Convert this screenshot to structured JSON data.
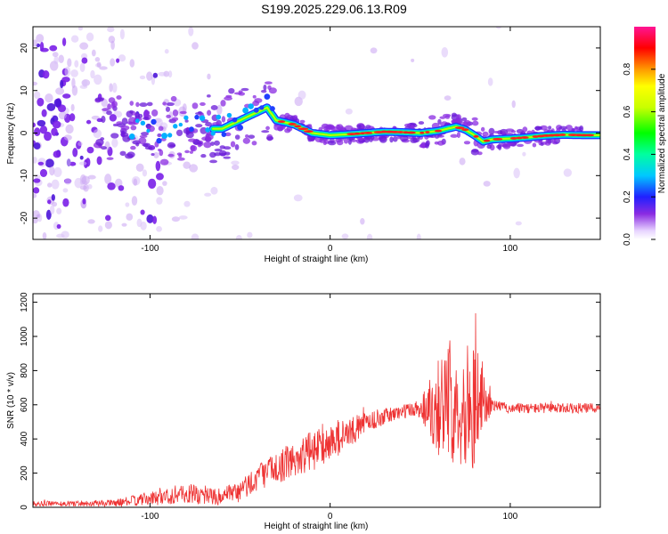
{
  "title": "S199.2025.229.06.13.R09",
  "chart_data": [
    {
      "type": "heatmap",
      "xlabel": "Height of straight line (km)",
      "ylabel": "Frequency (Hz)",
      "xlim": [
        -165,
        150
      ],
      "ylim": [
        -25,
        25
      ],
      "x_ticks": [
        -100,
        0,
        100
      ],
      "y_ticks": [
        -20,
        -10,
        0,
        10,
        20
      ],
      "colorbar": {
        "label": "Normalized spectral amplitude",
        "range": [
          0,
          1
        ],
        "ticks": [
          0.0,
          0.2,
          0.4,
          0.6,
          0.8
        ]
      },
      "ridge": {
        "x": [
          -60,
          -45,
          -35,
          -30,
          -20,
          -10,
          0,
          10,
          20,
          30,
          40,
          50,
          60,
          65,
          70,
          75,
          80,
          85,
          90,
          100,
          110,
          120,
          130,
          140,
          150
        ],
        "y": [
          1,
          4,
          6,
          3,
          2,
          0,
          -0.5,
          -0.3,
          0,
          0.3,
          0.2,
          0,
          0.5,
          1,
          1.5,
          0.8,
          -0.5,
          -2,
          -1.5,
          -1.3,
          -1,
          -0.6,
          -0.4,
          -0.5,
          -0.5
        ]
      }
    },
    {
      "type": "line",
      "xlabel": "Height of straight line (km)",
      "ylabel": "SNR (10 * v/v)",
      "xlim": [
        -165,
        150
      ],
      "ylim": [
        0,
        1250
      ],
      "x_ticks": [
        -100,
        0,
        100
      ],
      "y_ticks": [
        0,
        200,
        400,
        600,
        800,
        1000,
        1200
      ],
      "color": "#ee3333",
      "envelope": {
        "x": [
          -165,
          -120,
          -100,
          -80,
          -60,
          -50,
          -40,
          -30,
          -20,
          -10,
          0,
          10,
          20,
          40,
          50,
          60,
          70,
          80,
          90,
          100,
          120,
          150
        ],
        "y": [
          20,
          25,
          50,
          80,
          60,
          90,
          180,
          230,
          280,
          330,
          380,
          430,
          500,
          560,
          580,
          600,
          600,
          600,
          600,
          580,
          580,
          580
        ],
        "amplitude": [
          15,
          20,
          40,
          60,
          50,
          70,
          80,
          90,
          110,
          120,
          110,
          90,
          60,
          40,
          60,
          300,
          350,
          380,
          30,
          30,
          30,
          30
        ]
      }
    }
  ]
}
